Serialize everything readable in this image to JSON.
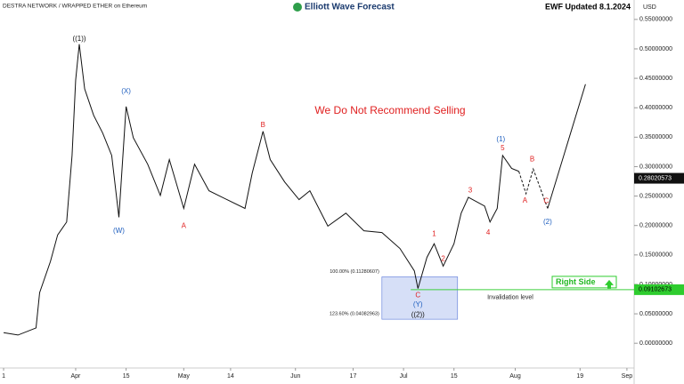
{
  "chart_data": {
    "type": "line",
    "title": "Elliott Wave Forecast",
    "subtitle": "DESTRA NETWORK / WRAPPED ETHER on Ethereum",
    "updated": "EWF Updated 8.1.2024",
    "y_unit": "USD",
    "note": "We Do Not Recommend Selling",
    "xlim": [
      -21,
      155
    ],
    "xticks": [
      {
        "value": -20,
        "label": "1"
      },
      {
        "value": 0,
        "label": "Apr"
      },
      {
        "value": 14,
        "label": "15"
      },
      {
        "value": 30,
        "label": "May"
      },
      {
        "value": 43,
        "label": "14"
      },
      {
        "value": 61,
        "label": "Jun"
      },
      {
        "value": 77,
        "label": "17"
      },
      {
        "value": 91,
        "label": "Jul"
      },
      {
        "value": 105,
        "label": "15"
      },
      {
        "value": 122,
        "label": "Aug"
      },
      {
        "value": 140,
        "label": "19"
      },
      {
        "value": 153,
        "label": "Sep"
      }
    ],
    "ylim": [
      -0.042,
      0.583
    ],
    "yticks": [
      {
        "value": 0,
        "label": "0.00000000"
      },
      {
        "value": 0.05,
        "label": "0.05000000"
      },
      {
        "value": 0.1,
        "label": "0.10000000"
      },
      {
        "value": 0.15,
        "label": "0.15000000"
      },
      {
        "value": 0.2,
        "label": "0.20000000"
      },
      {
        "value": 0.25,
        "label": "0.25000000"
      },
      {
        "value": 0.3,
        "label": "0.30000000"
      },
      {
        "value": 0.35,
        "label": "0.35000000"
      },
      {
        "value": 0.4,
        "label": "0.40000000"
      },
      {
        "value": 0.45,
        "label": "0.45000000"
      },
      {
        "value": 0.5,
        "label": "0.50000000"
      },
      {
        "value": 0.55,
        "label": "0.55000000"
      }
    ],
    "series": [
      {
        "color": "#111111",
        "style": "solid",
        "x": [
          -20,
          -16,
          -11,
          -10,
          -7,
          -5,
          -2.5,
          -1,
          0,
          1,
          2.5,
          5,
          7.5,
          10,
          12,
          14,
          16,
          20,
          23.5,
          26,
          30,
          33,
          37,
          42,
          47,
          49,
          52,
          54,
          58,
          62,
          65,
          70,
          75,
          80,
          85,
          90,
          94,
          95,
          97.5,
          99.5,
          102,
          105,
          107,
          109,
          113.5,
          115,
          117,
          118.5,
          121,
          123
        ],
        "values": [
          0.018,
          0.014,
          0.026,
          0.086,
          0.139,
          0.184,
          0.206,
          0.319,
          0.447,
          0.508,
          0.432,
          0.387,
          0.357,
          0.319,
          0.214,
          0.402,
          0.349,
          0.304,
          0.251,
          0.312,
          0.229,
          0.304,
          0.259,
          0.244,
          0.229,
          0.289,
          0.36,
          0.312,
          0.274,
          0.244,
          0.259,
          0.199,
          0.221,
          0.191,
          0.188,
          0.161,
          0.123,
          0.093,
          0.146,
          0.169,
          0.131,
          0.169,
          0.221,
          0.248,
          0.233,
          0.206,
          0.229,
          0.319,
          0.297,
          0.292
        ]
      },
      {
        "color": "#111111",
        "style": "dashed",
        "x": [
          123,
          125,
          127,
          131
        ],
        "values": [
          0.292,
          0.254,
          0.296,
          0.229
        ]
      },
      {
        "color": "#111111",
        "style": "solid",
        "x": [
          131,
          141.5
        ],
        "values": [
          0.229,
          0.44
        ]
      }
    ],
    "annotations": [
      {
        "text": "((1))",
        "x": 1,
        "y": 0.517,
        "color": "#111111"
      },
      {
        "text": "(X)",
        "x": 14,
        "y": 0.428,
        "color": "#1f5fbf"
      },
      {
        "text": "(W)",
        "x": 12,
        "y": 0.191,
        "color": "#1f5fbf"
      },
      {
        "text": "A",
        "x": 30,
        "y": 0.199,
        "color": "#e02020"
      },
      {
        "text": "B",
        "x": 52,
        "y": 0.37,
        "color": "#e02020"
      },
      {
        "text": "C",
        "x": 95,
        "y": 0.081,
        "color": "#e02020"
      },
      {
        "text": "(Y)",
        "x": 95,
        "y": 0.065,
        "color": "#1f5fbf"
      },
      {
        "text": "((2))",
        "x": 95,
        "y": 0.048,
        "color": "#111111"
      },
      {
        "text": "1",
        "x": 99.5,
        "y": 0.185,
        "color": "#e02020"
      },
      {
        "text": "2",
        "x": 102,
        "y": 0.143,
        "color": "#e02020"
      },
      {
        "text": "3",
        "x": 109.5,
        "y": 0.259,
        "color": "#e02020"
      },
      {
        "text": "4",
        "x": 114.5,
        "y": 0.188,
        "color": "#e02020"
      },
      {
        "text": "5",
        "x": 118.5,
        "y": 0.331,
        "color": "#e02020"
      },
      {
        "text": "(1)",
        "x": 118,
        "y": 0.346,
        "color": "#1f5fbf"
      },
      {
        "text": "A",
        "x": 124.7,
        "y": 0.242,
        "color": "#e02020"
      },
      {
        "text": "B",
        "x": 126.7,
        "y": 0.312,
        "color": "#e02020"
      },
      {
        "text": "C",
        "x": 130.6,
        "y": 0.241,
        "color": "#e02020"
      },
      {
        "text": "(2)",
        "x": 131,
        "y": 0.206,
        "color": "#1f5fbf"
      }
    ],
    "zone": {
      "x": [
        85,
        106
      ],
      "top": 0.11280607,
      "bottom": 0.04082963,
      "top_label": "100.00% (0.11280607)",
      "bottom_label": "123.60% (0.04082963)"
    },
    "invalidation": {
      "value": 0.09102673,
      "x_start": 93,
      "label": "Invalidation level",
      "side_label": "Right Side"
    },
    "last_price": 0.28020573
  }
}
